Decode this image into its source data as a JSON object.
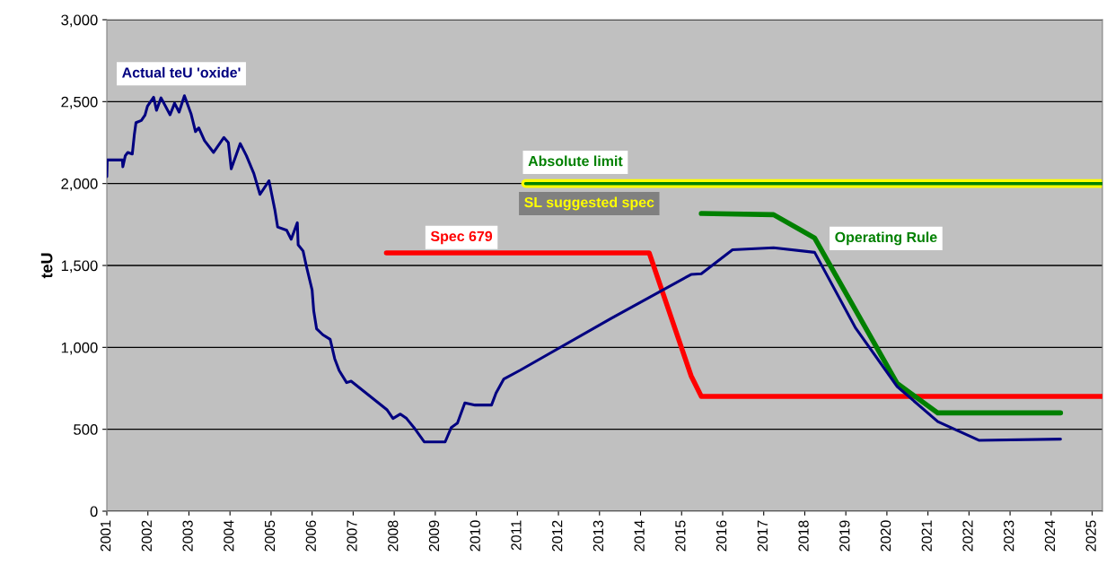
{
  "chart_data": {
    "type": "line",
    "ylabel": "teU",
    "xlim": [
      2001,
      2025.25
    ],
    "ylim": [
      0,
      3000
    ],
    "xticks": [
      2001,
      2002,
      2003,
      2004,
      2005,
      2006,
      2007,
      2008,
      2009,
      2010,
      2011,
      2012,
      2013,
      2014,
      2015,
      2016,
      2017,
      2018,
      2019,
      2020,
      2021,
      2022,
      2023,
      2024,
      2025
    ],
    "yticks": [
      0,
      500,
      {
        "value": 1000,
        "label": "1,000"
      },
      {
        "value": 1500,
        "label": "1,500"
      },
      {
        "value": 2000,
        "label": "2,000"
      },
      {
        "value": 2500,
        "label": "2,500"
      },
      {
        "value": 3000,
        "label": "3,000"
      }
    ],
    "grid": "y",
    "legend": false,
    "marker": "none",
    "line_style": "solid",
    "series": [
      {
        "name": "Actual teU 'oxide'",
        "color": "#000080",
        "x": [
          2001.0,
          2001.01,
          2001.38,
          2001.39,
          2001.45,
          2001.51,
          2001.62,
          2001.67,
          2001.71,
          2001.84,
          2001.93,
          2001.99,
          2002.14,
          2002.21,
          2002.32,
          2002.54,
          2002.65,
          2002.76,
          2002.89,
          2003.05,
          2003.16,
          2003.24,
          2003.38,
          2003.6,
          2003.85,
          2003.96,
          2004.03,
          2004.25,
          2004.4,
          2004.58,
          2004.73,
          2004.95,
          2005.09,
          2005.16,
          2005.38,
          2005.49,
          2005.64,
          2005.66,
          2005.78,
          2005.86,
          2006.0,
          2006.04,
          2006.11,
          2006.26,
          2006.44,
          2006.55,
          2006.66,
          2006.84,
          2006.95,
          2007.82,
          2007.97,
          2008.15,
          2008.3,
          2008.48,
          2008.73,
          2009.24,
          2009.39,
          2009.54,
          2009.72,
          2009.97,
          2010.37,
          2010.48,
          2010.67,
          2011.07,
          2013.28,
          2015.23,
          2015.48,
          2016.24,
          2017.24,
          2018.24,
          2019.24,
          2020.25,
          2021.24,
          2022.24,
          2024.23
        ],
        "values": [
          2042,
          2144,
          2144,
          2102,
          2170,
          2190,
          2180,
          2299,
          2372,
          2385,
          2418,
          2472,
          2527,
          2447,
          2523,
          2420,
          2490,
          2436,
          2536,
          2427,
          2317,
          2340,
          2262,
          2190,
          2281,
          2250,
          2090,
          2244,
          2170,
          2062,
          1934,
          2017,
          1843,
          1735,
          1715,
          1660,
          1761,
          1626,
          1588,
          1496,
          1350,
          1222,
          1113,
          1077,
          1049,
          931,
          858,
          785,
          794,
          620,
          566,
          593,
          566,
          511,
          423,
          423,
          511,
          538,
          661,
          648,
          648,
          721,
          807,
          861,
          1176,
          1445,
          1449,
          1596,
          1608,
          1580,
          1117,
          761,
          547,
          433,
          440
        ]
      },
      {
        "name": "Spec 679",
        "color": "#ff0000",
        "x": [
          2007.81,
          2014.21,
          2015.23,
          2015.48,
          2025.25
        ],
        "values": [
          1577,
          1577,
          827,
          701,
          701
        ]
      },
      {
        "name": "SL suggested spec",
        "color": "#ffff00",
        "x": [
          2011.2,
          2025.25
        ],
        "values": [
          2000,
          2000
        ]
      },
      {
        "name": "Absolute limit",
        "color": "#008000",
        "x": [
          2011.2,
          2025.25
        ],
        "values": [
          2000,
          2000
        ]
      },
      {
        "name": "Operating Rule",
        "color": "#008000",
        "x": [
          2015.48,
          2017.24,
          2018.24,
          2020.25,
          2021.24,
          2024.23
        ],
        "values": [
          1817,
          1810,
          1668,
          780,
          600,
          600
        ]
      }
    ]
  }
}
